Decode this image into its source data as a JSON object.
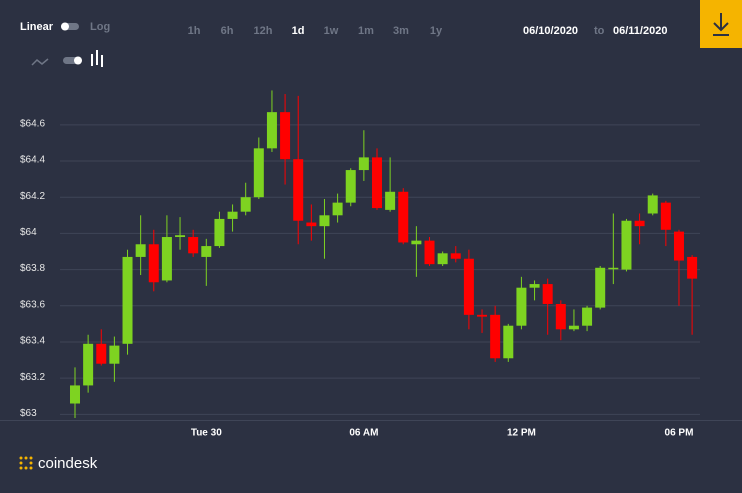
{
  "scale_toggle": {
    "linear": "Linear",
    "log": "Log"
  },
  "ranges": [
    "1h",
    "6h",
    "12h",
    "1d",
    "1w",
    "1m",
    "3m",
    "1y"
  ],
  "date_from": "06/10/2020",
  "date_sep": "to",
  "date_to": "06/11/2020",
  "brand": "coindesk",
  "chart_data": {
    "type": "candlestick",
    "categories": [
      null,
      null,
      null,
      null,
      null,
      null,
      null,
      null,
      null,
      null,
      "Tue 30",
      null,
      null,
      null,
      null,
      null,
      null,
      null,
      null,
      null,
      null,
      null,
      "06 AM",
      null,
      null,
      null,
      null,
      null,
      null,
      null,
      null,
      null,
      null,
      null,
      "12 PM",
      null,
      null,
      null,
      null,
      null,
      null,
      null,
      null,
      null,
      null,
      null,
      "06 PM",
      null
    ],
    "open": [
      63.06,
      63.16,
      63.39,
      63.28,
      63.39,
      63.87,
      63.94,
      63.74,
      63.98,
      63.98,
      63.87,
      63.93,
      64.08,
      64.12,
      64.2,
      64.47,
      64.67,
      64.41,
      64.06,
      64.04,
      64.1,
      64.17,
      64.35,
      64.42,
      64.13,
      64.23,
      63.94,
      63.96,
      63.83,
      63.89,
      63.86,
      63.55,
      63.55,
      63.31,
      63.49,
      63.7,
      63.72,
      63.61,
      63.47,
      63.49,
      63.59,
      63.81,
      63.8,
      64.07,
      64.11,
      64.17,
      64.01,
      63.87
    ],
    "high": [
      63.26,
      63.44,
      63.47,
      63.43,
      63.91,
      64.1,
      64.02,
      64.1,
      64.09,
      64.02,
      63.97,
      64.12,
      64.16,
      64.28,
      64.53,
      64.79,
      64.77,
      64.76,
      64.16,
      64.19,
      64.22,
      64.36,
      64.57,
      64.47,
      64.42,
      64.25,
      64.04,
      63.98,
      63.9,
      63.93,
      63.91,
      63.58,
      63.6,
      63.5,
      63.76,
      63.74,
      63.75,
      63.63,
      63.58,
      63.6,
      63.82,
      64.11,
      64.08,
      64.11,
      64.22,
      64.18,
      64.02,
      63.88
    ],
    "low": [
      62.98,
      63.12,
      63.27,
      63.18,
      63.33,
      63.77,
      63.68,
      63.73,
      63.91,
      63.87,
      63.71,
      63.92,
      64.01,
      64.1,
      64.19,
      64.45,
      64.27,
      63.94,
      63.96,
      63.86,
      64.06,
      64.15,
      64.29,
      64.13,
      64.12,
      63.94,
      63.76,
      63.82,
      63.82,
      63.84,
      63.47,
      63.45,
      63.29,
      63.29,
      63.47,
      63.63,
      63.44,
      63.41,
      63.46,
      63.46,
      63.58,
      63.72,
      63.79,
      63.94,
      64.1,
      63.93,
      63.6,
      63.44
    ],
    "close": [
      63.16,
      63.39,
      63.28,
      63.38,
      63.87,
      63.94,
      63.73,
      63.98,
      63.99,
      63.89,
      63.93,
      64.08,
      64.12,
      64.2,
      64.47,
      64.67,
      64.41,
      64.07,
      64.04,
      64.1,
      64.17,
      64.35,
      64.42,
      64.14,
      64.23,
      63.95,
      63.96,
      63.83,
      63.89,
      63.86,
      63.55,
      63.54,
      63.31,
      63.49,
      63.7,
      63.72,
      63.61,
      63.47,
      63.49,
      63.59,
      63.81,
      63.81,
      64.07,
      64.04,
      64.21,
      64.02,
      63.85,
      63.75
    ],
    "up_color": "#7ed321",
    "down_color": "#ff0000",
    "ylim": [
      62.98,
      64.82
    ],
    "yticks": [
      {
        "value": 63,
        "label": "$63"
      },
      {
        "value": 63.2,
        "label": "$63.2"
      },
      {
        "value": 63.4,
        "label": "$63.4"
      },
      {
        "value": 63.6,
        "label": "$63.6"
      },
      {
        "value": 63.8,
        "label": "$63.8"
      },
      {
        "value": 64,
        "label": "$64"
      },
      {
        "value": 64.2,
        "label": "$64.2"
      },
      {
        "value": 64.4,
        "label": "$64.4"
      },
      {
        "value": 64.6,
        "label": "$64.6"
      }
    ],
    "grid": true
  }
}
